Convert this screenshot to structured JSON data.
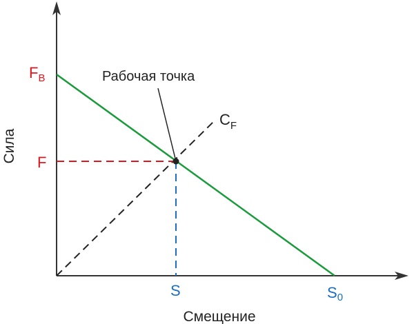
{
  "labels": {
    "y_axis": "Сила",
    "x_axis": "Смещение",
    "fb_main": "F",
    "fb_sub": "B",
    "f": "F",
    "s": "S",
    "s0_main": "S",
    "s0_sub": "0",
    "cf_main": "C",
    "cf_sub": "F",
    "operating_point": "Рабочая точка"
  },
  "colors": {
    "axes": "#333333",
    "load_line": "#1a9b3b",
    "stiffness_line": "#222222",
    "force_marker": "#e0161d",
    "displacement_marker": "#1a6fc4",
    "text": "#222222"
  }
}
